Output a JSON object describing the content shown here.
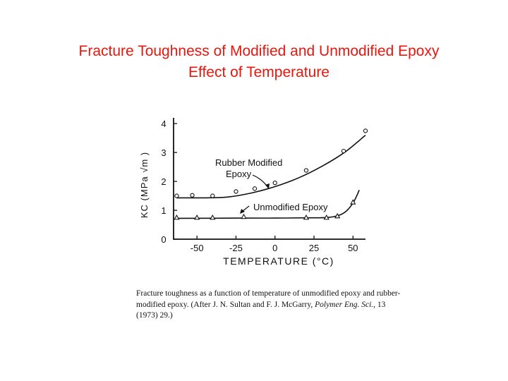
{
  "colors": {
    "title": "#e8170e",
    "ink": "#111111"
  },
  "title": {
    "line1": "Fracture Toughness of Modified and Unmodified Epoxy",
    "line2": "Effect of Temperature"
  },
  "caption": {
    "text_before": "Fracture toughness as a function of temperature of unmodified epoxy and rubber-modified epoxy. (After J. N. Sultan and F. J. McGarry, ",
    "journal": "Polymer Eng. Sci.",
    "text_after": ", 13 (1973) 29.)"
  },
  "chart_data": {
    "type": "scatter",
    "xlabel": "TEMPERATURE (°C)",
    "ylabel": "KC (MPa √m )",
    "xlim": [
      -65,
      58
    ],
    "ylim": [
      0,
      4.2
    ],
    "x_ticks": [
      "-50",
      "-25",
      "0",
      "25",
      "50"
    ],
    "x_tick_values": [
      -50,
      -25,
      0,
      25,
      50
    ],
    "y_ticks": [
      "0",
      "1",
      "2",
      "3",
      "4"
    ],
    "y_tick_values": [
      0,
      1,
      2,
      3,
      4
    ],
    "grid": false,
    "annotations": [
      {
        "text": "Rubber Modified",
        "series": "rubber"
      },
      {
        "text": "Epoxy",
        "series": "rubber"
      },
      {
        "text": "Unmodified Epoxy",
        "series": "unmodified"
      }
    ],
    "series": [
      {
        "id": "rubber",
        "marker": "circle",
        "points": [
          [
            -63,
            1.5
          ],
          [
            -53,
            1.52
          ],
          [
            -40,
            1.5
          ],
          [
            -25,
            1.65
          ],
          [
            -13,
            1.75
          ],
          [
            0,
            1.95
          ],
          [
            20,
            2.38
          ],
          [
            44,
            3.05
          ],
          [
            58,
            3.75
          ]
        ],
        "curve": [
          [
            -63,
            1.43
          ],
          [
            -45,
            1.43
          ],
          [
            -30,
            1.46
          ],
          [
            -15,
            1.6
          ],
          [
            0,
            1.82
          ],
          [
            15,
            2.12
          ],
          [
            30,
            2.52
          ],
          [
            45,
            3.02
          ],
          [
            58,
            3.6
          ]
        ]
      },
      {
        "id": "unmodified",
        "marker": "triangle",
        "points": [
          [
            -63,
            0.75
          ],
          [
            -50,
            0.75
          ],
          [
            -40,
            0.75
          ],
          [
            -20,
            0.78
          ],
          [
            20,
            0.75
          ],
          [
            33,
            0.75
          ],
          [
            40,
            0.8
          ],
          [
            50,
            1.28
          ]
        ],
        "curve": [
          [
            -63,
            0.72
          ],
          [
            -20,
            0.73
          ],
          [
            0,
            0.73
          ],
          [
            20,
            0.74
          ],
          [
            35,
            0.76
          ],
          [
            44,
            0.9
          ],
          [
            50,
            1.25
          ],
          [
            54,
            1.7
          ]
        ]
      }
    ]
  }
}
